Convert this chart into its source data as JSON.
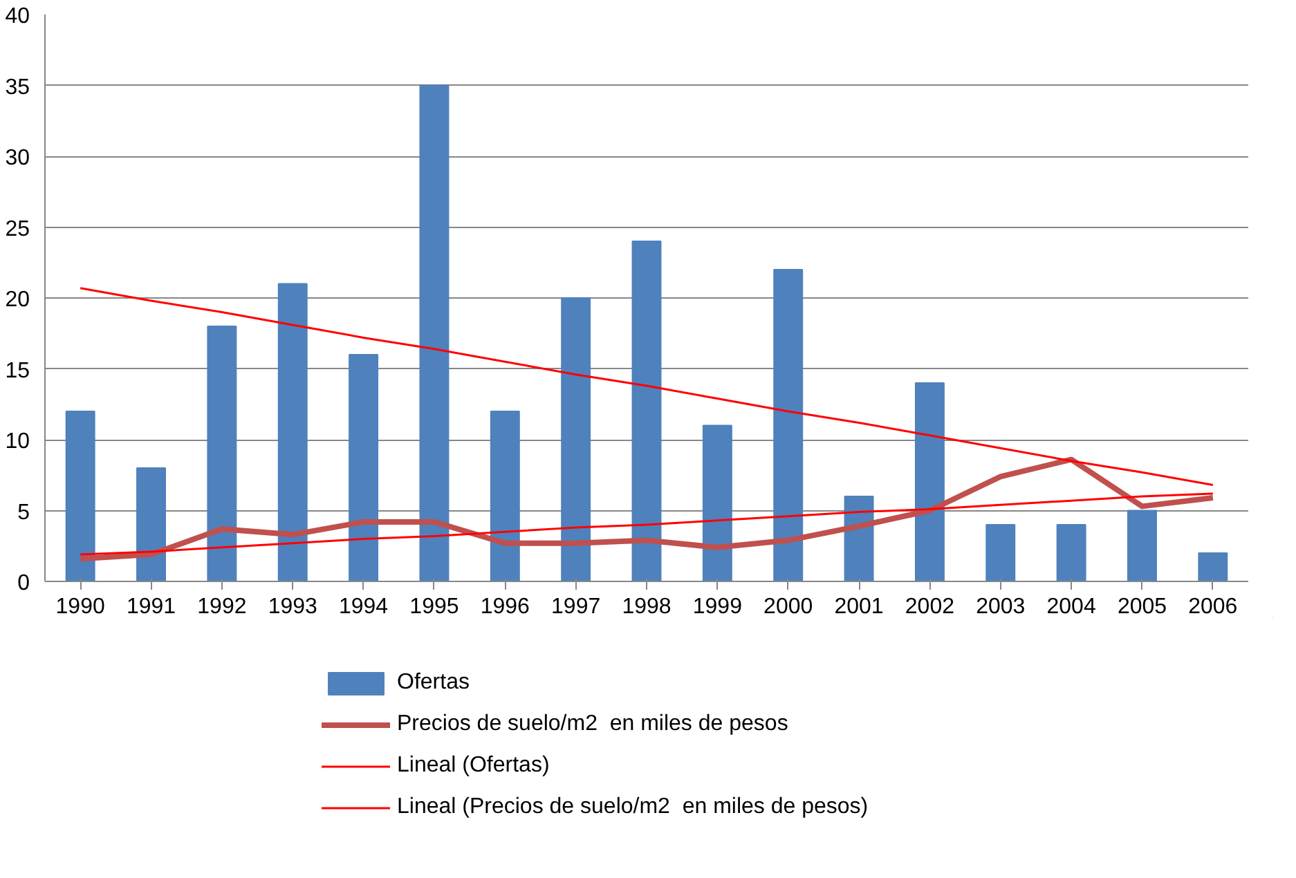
{
  "chart_data": {
    "type": "bar",
    "categories": [
      "1990",
      "1991",
      "1992",
      "1993",
      "1994",
      "1995",
      "1996",
      "1997",
      "1998",
      "1999",
      "2000",
      "2001",
      "2002",
      "2003",
      "2004",
      "2005",
      "2006"
    ],
    "series": [
      {
        "name": "Ofertas",
        "color": "#4f81bd",
        "values": [
          12,
          8,
          18,
          21,
          16,
          35,
          12,
          20,
          24,
          11,
          22,
          6,
          14,
          4,
          4,
          5,
          2
        ]
      },
      {
        "name": "Precios de suelo/m2  en miles de pesos",
        "type": "line",
        "color": "#c0504d",
        "values": [
          1.6,
          1.9,
          3.7,
          3.3,
          4.2,
          4.2,
          2.7,
          2.7,
          2.9,
          2.4,
          2.9,
          3.9,
          5.0,
          7.4,
          8.6,
          5.3,
          5.9
        ]
      },
      {
        "name": "Lineal (Ofertas)",
        "type": "line",
        "color": "#ff0000",
        "values": [
          20.7,
          19.8,
          19.0,
          18.1,
          17.2,
          16.4,
          15.5,
          14.6,
          13.8,
          12.9,
          12.0,
          11.2,
          10.3,
          9.4,
          8.5,
          7.7,
          6.8
        ]
      },
      {
        "name": "Lineal (Precios de suelo/m2  en miles de pesos)",
        "type": "line",
        "color": "#ff0000",
        "values": [
          1.9,
          2.1,
          2.4,
          2.7,
          3.0,
          3.2,
          3.5,
          3.8,
          4.0,
          4.3,
          4.6,
          4.9,
          5.1,
          5.4,
          5.7,
          6.0,
          6.2
        ]
      }
    ],
    "ylim": [
      0,
      40
    ],
    "yticks": [
      0,
      5,
      10,
      15,
      20,
      25,
      30,
      35,
      40
    ],
    "grid": "y",
    "legend": "bottom"
  }
}
